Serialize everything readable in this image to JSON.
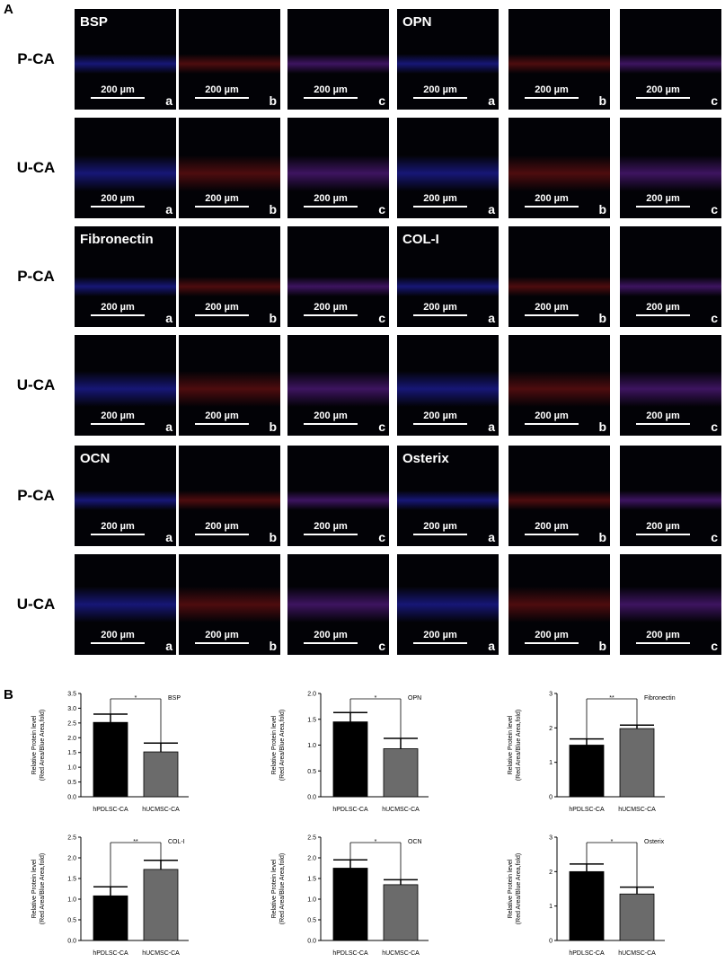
{
  "panel_a_label": "A",
  "panel_b_label": "B",
  "micro": {
    "scale_bar": "200 µm",
    "subpanels": [
      "a",
      "b",
      "c"
    ],
    "blocks": [
      {
        "rows": [
          "P-CA",
          "U-CA"
        ],
        "left_marker": "BSP",
        "right_marker": "OPN"
      },
      {
        "rows": [
          "P-CA",
          "U-CA"
        ],
        "left_marker": "Fibronectin",
        "right_marker": "COL-I"
      },
      {
        "rows": [
          "P-CA",
          "U-CA"
        ],
        "left_marker": "OCN",
        "right_marker": "Osterix"
      }
    ]
  },
  "colors": {
    "tile_bg": "#020206",
    "blue": "#2a2ad8",
    "red": "#b01818",
    "bar_hp": "#000000",
    "bar_hu": "#6b6b6b"
  },
  "chart_data": [
    {
      "type": "bar",
      "title": "BSP",
      "categories": [
        "hPDLSC-CA",
        "hUCMSC-CA"
      ],
      "values": [
        2.52,
        1.52
      ],
      "errors": [
        0.28,
        0.3
      ],
      "ylabel": "Relative Protein level (Red Area/Blue Area,fold)",
      "ylim": [
        0,
        3.5
      ],
      "yticks": [
        "0.0",
        "0.5",
        "1.0",
        "1.5",
        "2.0",
        "2.5",
        "3.0",
        "3.5"
      ],
      "significance": "*"
    },
    {
      "type": "bar",
      "title": "OPN",
      "categories": [
        "hPDLSC-CA",
        "hUCMSC-CA"
      ],
      "values": [
        1.45,
        0.93
      ],
      "errors": [
        0.18,
        0.2
      ],
      "ylabel": "Relative Protein level (Red Area/Blue Area,fold)",
      "ylim": [
        0,
        2.0
      ],
      "yticks": [
        "0.0",
        "0.5",
        "1.0",
        "1.5",
        "2.0"
      ],
      "significance": "*"
    },
    {
      "type": "bar",
      "title": "Fibronectin",
      "categories": [
        "hPDLSC-CA",
        "hUCMSC-CA"
      ],
      "values": [
        1.5,
        1.98
      ],
      "errors": [
        0.18,
        0.1
      ],
      "ylabel": "Relative Protein level (Red Area/Blue Area,fold)",
      "ylim": [
        0,
        3
      ],
      "yticks": [
        "0",
        "1",
        "2",
        "3"
      ],
      "significance": "**"
    },
    {
      "type": "bar",
      "title": "COL-I",
      "categories": [
        "hPDLSC-CA",
        "hUCMSC-CA"
      ],
      "values": [
        1.08,
        1.72
      ],
      "errors": [
        0.22,
        0.22
      ],
      "ylabel": "Relative Protein level (Red Area/Blue Area,fold)",
      "ylim": [
        0,
        2.5
      ],
      "yticks": [
        "0.0",
        "0.5",
        "1.0",
        "1.5",
        "2.0",
        "2.5"
      ],
      "significance": "**"
    },
    {
      "type": "bar",
      "title": "OCN",
      "categories": [
        "hPDLSC-CA",
        "hUCMSC-CA"
      ],
      "values": [
        1.75,
        1.35
      ],
      "errors": [
        0.2,
        0.12
      ],
      "ylabel": "Relative Protein level (Red Area/Blue Area,fold)",
      "ylim": [
        0,
        2.5
      ],
      "yticks": [
        "0.0",
        "0.5",
        "1.0",
        "1.5",
        "2.0",
        "2.5"
      ],
      "significance": "*"
    },
    {
      "type": "bar",
      "title": "Osterix",
      "categories": [
        "hPDLSC-CA",
        "hUCMSC-CA"
      ],
      "values": [
        2.0,
        1.35
      ],
      "errors": [
        0.22,
        0.2
      ],
      "ylabel": "Relative Protein level (Red Area/Blue Area,fold)",
      "ylim": [
        0,
        3
      ],
      "yticks": [
        "0",
        "1",
        "2",
        "3"
      ],
      "significance": "*"
    }
  ]
}
